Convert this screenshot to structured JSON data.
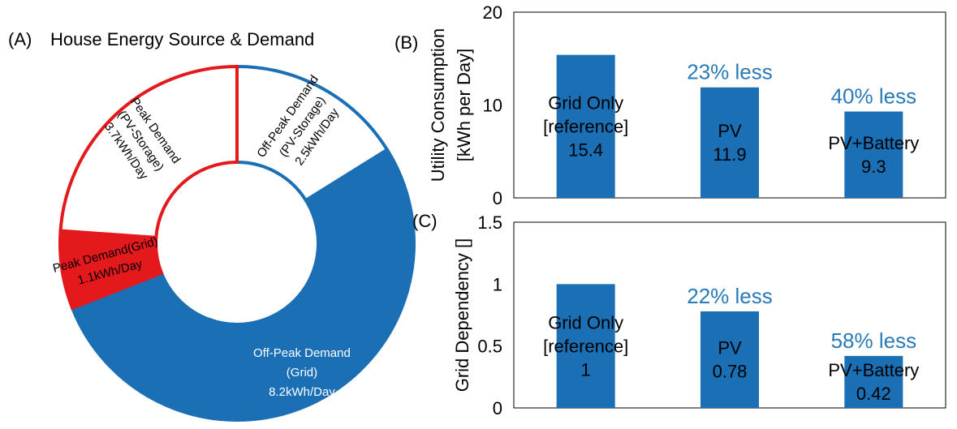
{
  "panel_labels": {
    "a": "(A)",
    "b": "(B)",
    "c": "(C)"
  },
  "colors": {
    "red": "#e3191c",
    "blue": "#1a6fb5",
    "highlight_text": "#2a7ab8",
    "text": "#000000",
    "white": "#ffffff"
  },
  "chart_data": [
    {
      "id": "A",
      "type": "pie",
      "title": "House Energy Source & Demand",
      "slices": [
        {
          "label": "Off-Peak Demand (PV-Storage)",
          "lines": [
            "Off-Peak Demand",
            "(PV-Storage)",
            "2.5kWh/Day"
          ],
          "value": 2.5,
          "fill": "#ffffff",
          "stroke": "#1a6fb5",
          "text_color": "#000000"
        },
        {
          "label": "Off-Peak Demand (Grid)",
          "lines": [
            "Off-Peak Demand",
            "(Grid)",
            "8.2kWh/Day"
          ],
          "value": 8.2,
          "fill": "#1a6fb5",
          "stroke": "#1a6fb5",
          "text_color": "#ffffff"
        },
        {
          "label": "Peak Demand(Grid)",
          "lines": [
            "Peak Demand(Grid)",
            "1.1kWh/Day"
          ],
          "value": 1.1,
          "fill": "#e3191c",
          "stroke": "#e3191c",
          "text_color": "#000000"
        },
        {
          "label": "Peak Demand (PV-Storage)",
          "lines": [
            "Peak Demand",
            "(PV-Storage)",
            "3.7kWh/Day"
          ],
          "value": 3.7,
          "fill": "#ffffff",
          "stroke": "#e3191c",
          "text_color": "#000000"
        }
      ]
    },
    {
      "id": "B",
      "type": "bar",
      "ylabel_lines": [
        "Utility Consumption",
        "[kWh per Day]"
      ],
      "ylim": [
        0,
        20
      ],
      "yticks": [
        "0",
        "10",
        "20"
      ],
      "categories": [
        "Grid Only [reference]",
        "PV",
        "PV+Battery"
      ],
      "values": [
        15.4,
        11.9,
        9.3
      ],
      "bar_labels": [
        [
          "Grid Only",
          "[reference]",
          "15.4"
        ],
        [
          "PV",
          "11.9"
        ],
        [
          "PV+Battery",
          "9.3"
        ]
      ],
      "annotations": [
        "",
        "23% less",
        "40% less"
      ]
    },
    {
      "id": "C",
      "type": "bar",
      "ylabel_lines": [
        "Grid Dependency []"
      ],
      "ylim": [
        0,
        1.5
      ],
      "yticks": [
        "0",
        "0.5",
        "1",
        "1.5"
      ],
      "categories": [
        "Grid Only [reference]",
        "PV",
        "PV+Battery"
      ],
      "values": [
        1,
        0.78,
        0.42
      ],
      "bar_labels": [
        [
          "Grid Only",
          "[reference]",
          "1"
        ],
        [
          "PV",
          "0.78"
        ],
        [
          "PV+Battery",
          "0.42"
        ]
      ],
      "annotations": [
        "",
        "22% less",
        "58% less"
      ]
    }
  ]
}
